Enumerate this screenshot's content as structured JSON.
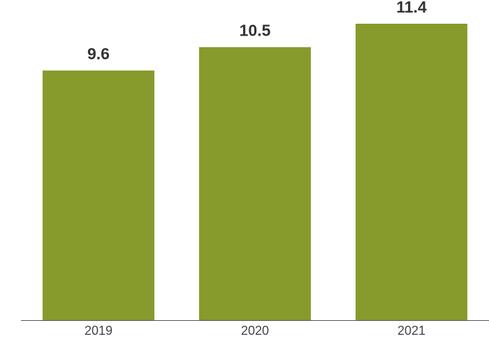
{
  "chart_data": {
    "type": "bar",
    "categories": [
      "2019",
      "2020",
      "2021"
    ],
    "values": [
      9.6,
      10.5,
      11.4
    ],
    "color": "#879b2c"
  }
}
